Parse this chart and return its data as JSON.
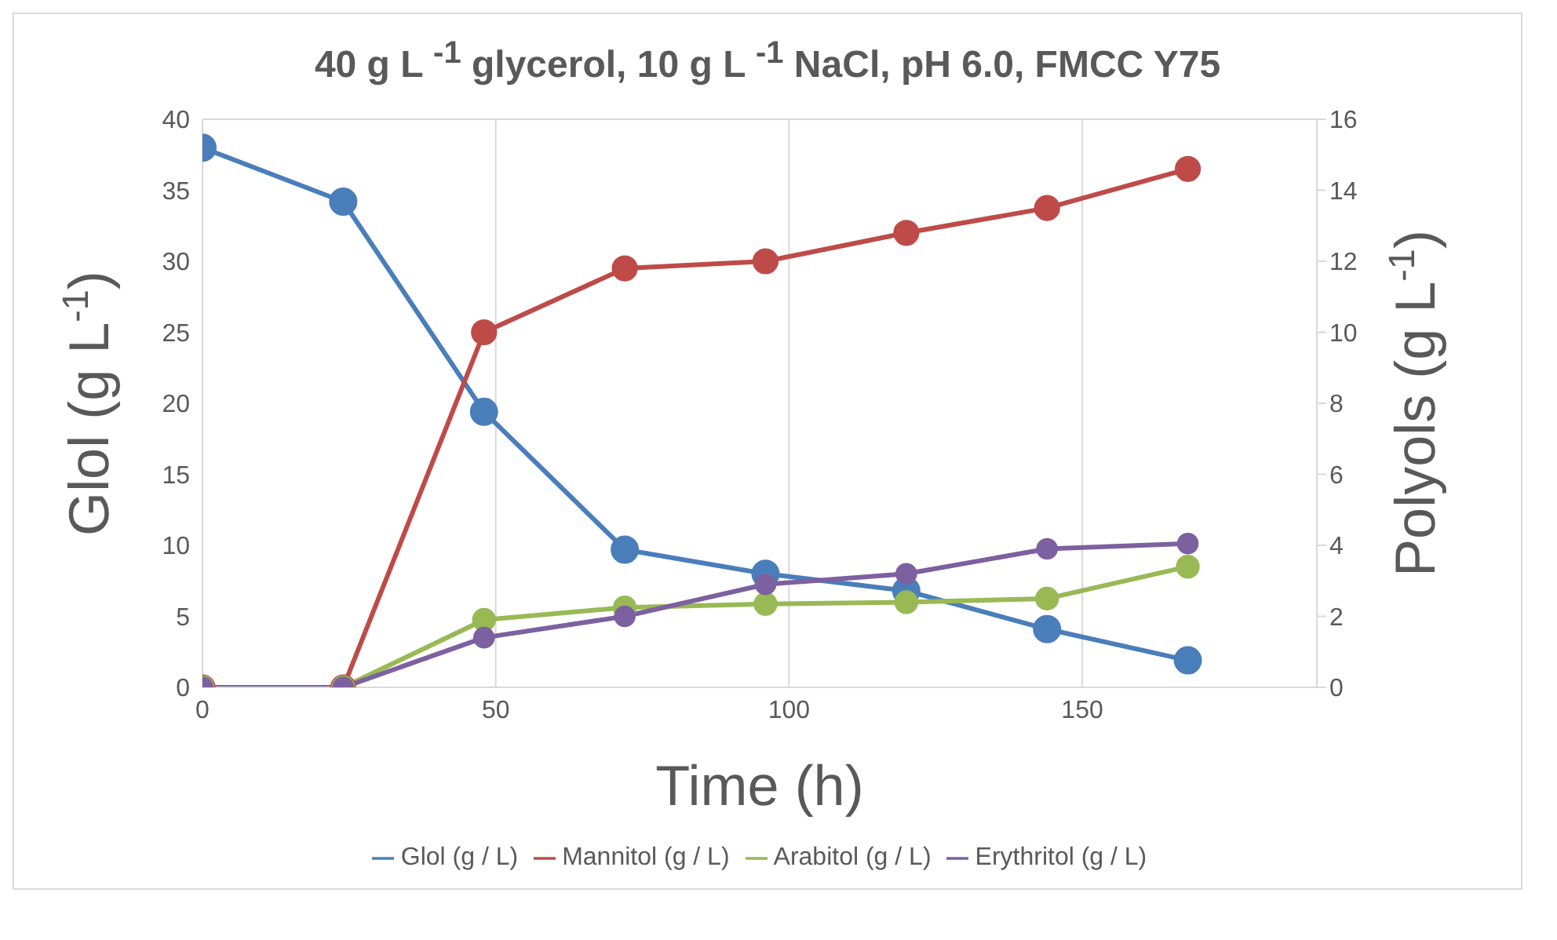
{
  "chart_data": {
    "type": "line",
    "title": "40 g  L $^{-1}$ glycerol, 10 g L $^{-1}$ NaCl, pH 6.0, FMCC Y75",
    "xlabel": "Time (h)",
    "ylabel": "Glol (g L$^{-1}$)",
    "y2label": "Polyols  (g L$^{-1}$)",
    "x": [
      0,
      24,
      48,
      72,
      96,
      120,
      144,
      168
    ],
    "series": [
      {
        "name": "Glol (g / L)",
        "color": "#4a7ebb",
        "values": [
          38,
          34.2,
          19.4,
          9.7,
          8,
          6.8,
          4.1,
          1.9
        ]
      },
      {
        "name": "Mannitol (g / L)",
        "color": "#be4b48",
        "axis": "y2",
        "values": [
          0,
          0,
          10,
          11.8,
          12,
          12.8,
          13.5,
          14.6
        ]
      },
      {
        "name": "Arabitol (g / L)",
        "color": "#98b954",
        "axis": "y2",
        "values": [
          0,
          0,
          1.9,
          2.25,
          2.35,
          2.4,
          2.5,
          3.4
        ]
      },
      {
        "name": "Erythritol (g / L)",
        "color": "#7d60a0",
        "axis": "y2",
        "values": [
          0,
          0,
          1.4,
          2,
          2.9,
          3.2,
          3.9,
          4.05
        ]
      }
    ],
    "xlim": [
      0,
      190
    ],
    "xticks": [
      0,
      50,
      100,
      150
    ],
    "ylim": [
      0,
      40
    ],
    "yticks": [
      0,
      5,
      10,
      15,
      20,
      25,
      30,
      35,
      40
    ],
    "y2lim": [
      0,
      16
    ],
    "y2ticks": [
      0,
      2,
      4,
      6,
      8,
      10,
      12,
      14,
      16
    ],
    "grid": true,
    "legend": "bottom",
    "marker": "circle",
    "line_style": "solid"
  }
}
